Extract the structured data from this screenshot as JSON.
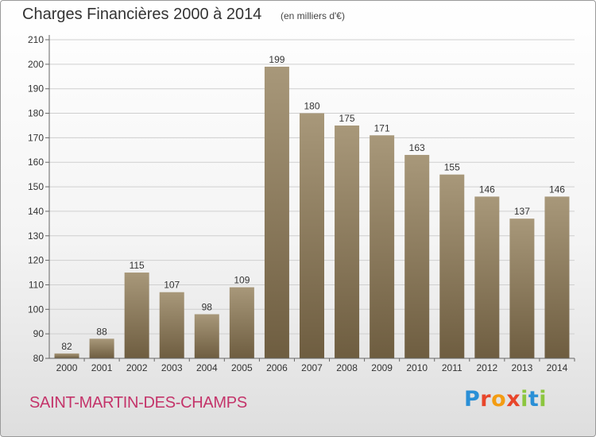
{
  "header": {
    "title": "Charges Financières 2000 à 2014",
    "subtitle": "(en milliers d'€)"
  },
  "footer": {
    "commune": "SAINT-MARTIN-DES-CHAMPS",
    "logo_text": "Proxiti",
    "logo_colors": [
      "#2a8fd6",
      "#e8462b",
      "#f39c12",
      "#e8462b",
      "#8cc63f",
      "#2a8fd6",
      "#8cc63f"
    ]
  },
  "colors": {
    "bar_top": "#a8987a",
    "bar_bottom": "#6e5d40",
    "grid": "#cfcfcf",
    "axis": "#666666",
    "text": "#333333"
  },
  "chart_data": {
    "type": "bar",
    "title": "Charges Financières 2000 à 2014",
    "subtitle": "(en milliers d'€)",
    "categories": [
      "2000",
      "2001",
      "2002",
      "2003",
      "2004",
      "2005",
      "2006",
      "2007",
      "2008",
      "2009",
      "2010",
      "2011",
      "2012",
      "2013",
      "2014"
    ],
    "values": [
      82,
      88,
      115,
      107,
      98,
      109,
      199,
      180,
      175,
      171,
      163,
      155,
      146,
      137,
      146
    ],
    "yticks": [
      "80",
      "90",
      "100",
      "110",
      "120",
      "130",
      "140",
      "150",
      "160",
      "170",
      "180",
      "190",
      "200",
      "210"
    ],
    "ylim": [
      80,
      210
    ],
    "grid": true,
    "xlabel": "",
    "ylabel": ""
  }
}
